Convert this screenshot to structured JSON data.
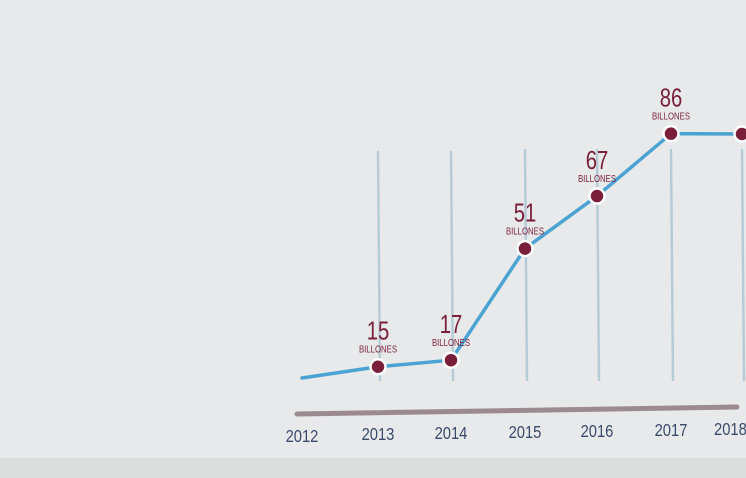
{
  "colors": {
    "background": "#e8e9ea",
    "line": "#4ba3d3",
    "marker": "#7a1f3a",
    "marker_stroke": "#ffffff",
    "value_label": "#7a1f3a",
    "year_label": "#3a4a6b",
    "axis_bar": "#9b8a90",
    "gridline": "#b7cbd7"
  },
  "chart_data": {
    "type": "line",
    "title": "",
    "xlabel": "",
    "ylabel": "",
    "grid": true,
    "legend": "none",
    "x": [
      "2012",
      "2013",
      "2014",
      "2015",
      "2016",
      "2017",
      "2018"
    ],
    "series": [
      {
        "values": [
          null,
          15,
          17,
          51,
          67,
          86,
          null
        ]
      }
    ],
    "point_labels": [
      {
        "year": "2013",
        "value": "15",
        "unit": "BILLONES"
      },
      {
        "year": "2014",
        "value": "17",
        "unit": "BILLONES"
      },
      {
        "year": "2015",
        "value": "51",
        "unit": "BILLONES"
      },
      {
        "year": "2016",
        "value": "67",
        "unit": "BILLONES"
      },
      {
        "year": "2017",
        "value": "86",
        "unit": "BILLONES"
      }
    ]
  }
}
